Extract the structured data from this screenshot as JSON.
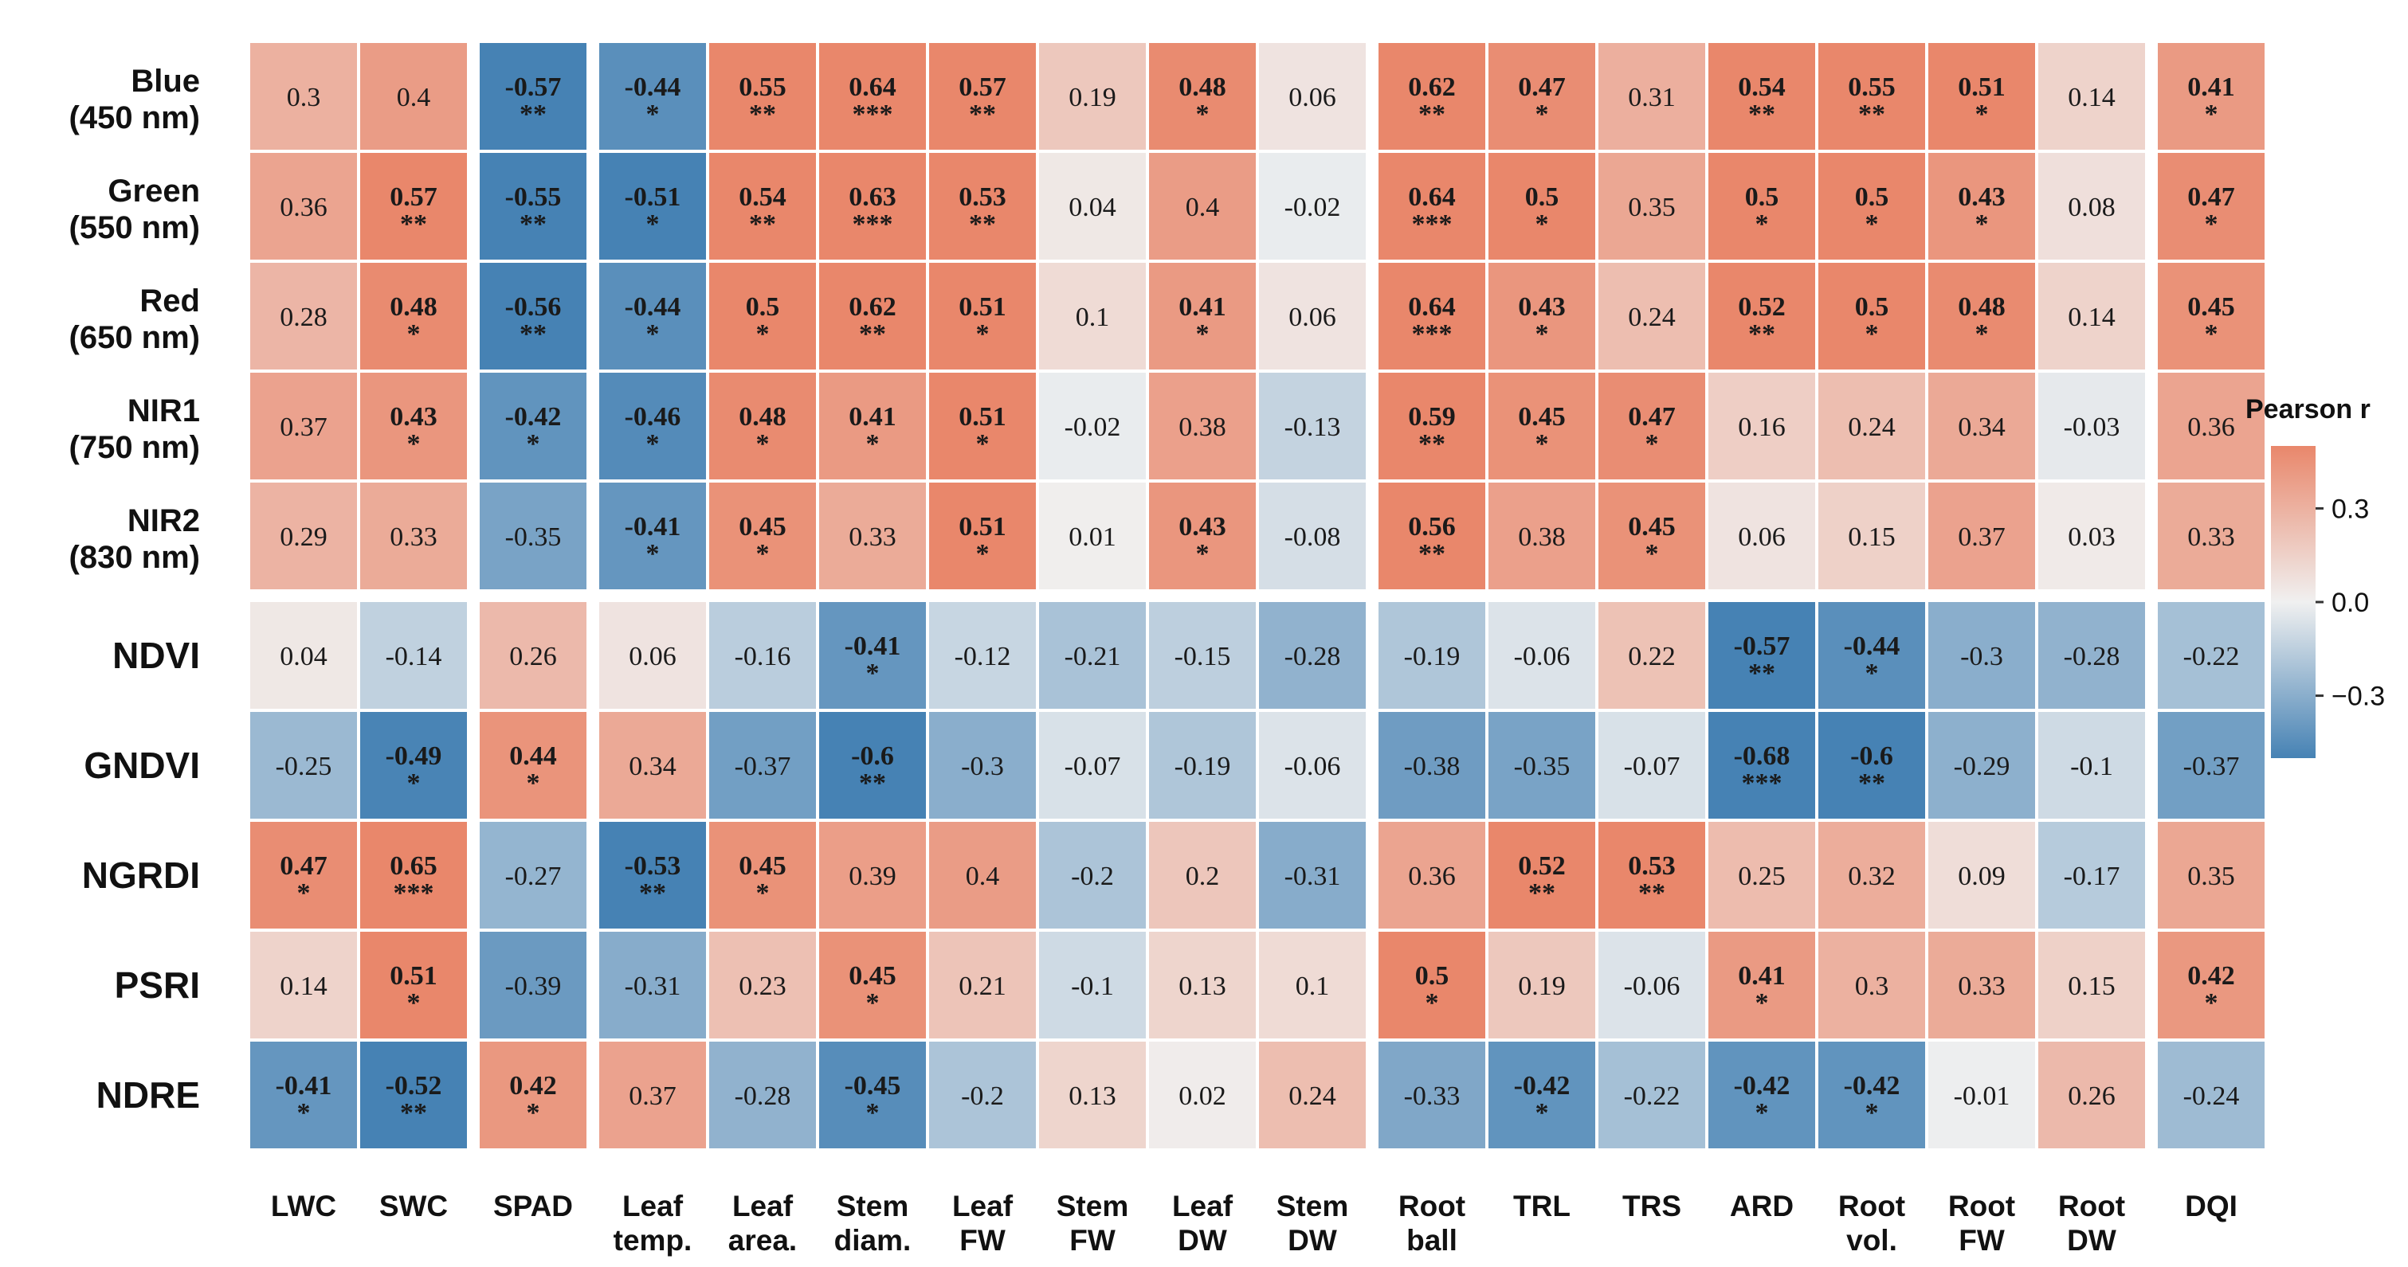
{
  "chart_data": {
    "type": "heatmap",
    "title": "",
    "xlabel": "",
    "ylabel": "",
    "legend": {
      "title": "Pearson r",
      "ticks": [
        0.3,
        0.0,
        -0.3
      ],
      "tick_labels": [
        "0.3",
        "0.0",
        "−0.3"
      ],
      "range": [
        -0.5,
        0.5
      ],
      "placement": "right",
      "colors": {
        "low": "#4682b4",
        "mid": "#f0f0f0",
        "high": "#e9876b"
      }
    },
    "rows": [
      [
        "Blue",
        "(450 nm)"
      ],
      [
        "Green",
        "(550 nm)"
      ],
      [
        "Red",
        "(650 nm)"
      ],
      [
        "NIR1",
        "(750 nm)"
      ],
      [
        "NIR2",
        "(830 nm)"
      ],
      [
        "NDVI"
      ],
      [
        "GNDVI"
      ],
      [
        "NGRDI"
      ],
      [
        "PSRI"
      ],
      [
        "NDRE"
      ]
    ],
    "row_groups": [
      5,
      5
    ],
    "columns": [
      [
        "LWC"
      ],
      [
        "SWC"
      ],
      [
        "SPAD"
      ],
      [
        "Leaf",
        "temp."
      ],
      [
        "Leaf",
        "area."
      ],
      [
        "Stem",
        "diam."
      ],
      [
        "Leaf",
        "FW"
      ],
      [
        "Stem",
        "FW"
      ],
      [
        "Leaf",
        "DW"
      ],
      [
        "Stem",
        "DW"
      ],
      [
        "Root",
        "ball"
      ],
      [
        "TRL"
      ],
      [
        "TRS"
      ],
      [
        "ARD"
      ],
      [
        "Root",
        "vol."
      ],
      [
        "Root",
        "FW"
      ],
      [
        "Root",
        "DW"
      ],
      [
        "DQI"
      ]
    ],
    "column_groups": [
      2,
      1,
      7,
      7,
      1
    ],
    "values": [
      [
        "0.3",
        "0.4",
        "-0.57",
        "-0.44",
        "0.55",
        "0.64",
        "0.57",
        "0.19",
        "0.48",
        "0.06",
        "0.62",
        "0.47",
        "0.31",
        "0.54",
        "0.55",
        "0.51",
        "0.14",
        "0.41"
      ],
      [
        "0.36",
        "0.57",
        "-0.55",
        "-0.51",
        "0.54",
        "0.63",
        "0.53",
        "0.04",
        "0.4",
        "-0.02",
        "0.64",
        "0.5",
        "0.35",
        "0.5",
        "0.5",
        "0.43",
        "0.08",
        "0.47"
      ],
      [
        "0.28",
        "0.48",
        "-0.56",
        "-0.44",
        "0.5",
        "0.62",
        "0.51",
        "0.1",
        "0.41",
        "0.06",
        "0.64",
        "0.43",
        "0.24",
        "0.52",
        "0.5",
        "0.48",
        "0.14",
        "0.45"
      ],
      [
        "0.37",
        "0.43",
        "-0.42",
        "-0.46",
        "0.48",
        "0.41",
        "0.51",
        "-0.02",
        "0.38",
        "-0.13",
        "0.59",
        "0.45",
        "0.47",
        "0.16",
        "0.24",
        "0.34",
        "-0.03",
        "0.36"
      ],
      [
        "0.29",
        "0.33",
        "-0.35",
        "-0.41",
        "0.45",
        "0.33",
        "0.51",
        "0.01",
        "0.43",
        "-0.08",
        "0.56",
        "0.38",
        "0.45",
        "0.06",
        "0.15",
        "0.37",
        "0.03",
        "0.33"
      ],
      [
        "0.04",
        "-0.14",
        "0.26",
        "0.06",
        "-0.16",
        "-0.41",
        "-0.12",
        "-0.21",
        "-0.15",
        "-0.28",
        "-0.19",
        "-0.06",
        "0.22",
        "-0.57",
        "-0.44",
        "-0.3",
        "-0.28",
        "-0.22"
      ],
      [
        "-0.25",
        "-0.49",
        "0.44",
        "0.34",
        "-0.37",
        "-0.6",
        "-0.3",
        "-0.07",
        "-0.19",
        "-0.06",
        "-0.38",
        "-0.35",
        "-0.07",
        "-0.68",
        "-0.6",
        "-0.29",
        "-0.1",
        "-0.37"
      ],
      [
        "0.47",
        "0.65",
        "-0.27",
        "-0.53",
        "0.45",
        "0.39",
        "0.4",
        "-0.2",
        "0.2",
        "-0.31",
        "0.36",
        "0.52",
        "0.53",
        "0.25",
        "0.32",
        "0.09",
        "-0.17",
        "0.35"
      ],
      [
        "0.14",
        "0.51",
        "-0.39",
        "-0.31",
        "0.23",
        "0.45",
        "0.21",
        "-0.1",
        "0.13",
        "0.1",
        "0.5",
        "0.19",
        "-0.06",
        "0.41",
        "0.3",
        "0.33",
        "0.15",
        "0.42"
      ],
      [
        "-0.41",
        "-0.52",
        "0.42",
        "0.37",
        "-0.28",
        "-0.45",
        "-0.2",
        "0.13",
        "0.02",
        "0.24",
        "-0.33",
        "-0.42",
        "-0.22",
        "-0.42",
        "-0.42",
        "-0.01",
        "0.26",
        "-0.24"
      ]
    ],
    "significance": [
      [
        "",
        "",
        "**",
        "*",
        "**",
        "***",
        "**",
        "",
        "*",
        "",
        "**",
        "*",
        "",
        "**",
        "**",
        "*",
        "",
        "*"
      ],
      [
        "",
        "**",
        "**",
        "*",
        "**",
        "***",
        "**",
        "",
        "",
        "",
        "***",
        "*",
        "",
        "*",
        "*",
        "*",
        "",
        "*"
      ],
      [
        "",
        "*",
        "**",
        "*",
        "*",
        "**",
        "*",
        "",
        "*",
        "",
        "***",
        "*",
        "",
        "**",
        "*",
        "*",
        "",
        "*"
      ],
      [
        "",
        "*",
        "*",
        "*",
        "*",
        "*",
        "*",
        "",
        "",
        "",
        "**",
        "*",
        "*",
        "",
        "",
        "",
        "",
        ""
      ],
      [
        "",
        "",
        "",
        "*",
        "*",
        "",
        "*",
        "",
        "*",
        "",
        "**",
        "",
        "*",
        "",
        "",
        "",
        "",
        ""
      ],
      [
        "",
        "",
        "",
        "",
        "",
        "*",
        "",
        "",
        "",
        "",
        "",
        "",
        "",
        "**",
        "*",
        "",
        "",
        ""
      ],
      [
        "",
        "*",
        "*",
        "",
        "",
        "**",
        "",
        "",
        "",
        "",
        "",
        "",
        "",
        "***",
        "**",
        "",
        "",
        ""
      ],
      [
        "*",
        "***",
        "",
        "**",
        "*",
        "",
        "",
        "",
        "",
        "",
        "",
        "**",
        "**",
        "",
        "",
        "",
        "",
        ""
      ],
      [
        "",
        "*",
        "",
        "",
        "",
        "*",
        "",
        "",
        "",
        "",
        "*",
        "",
        "",
        "*",
        "",
        "",
        "",
        "*"
      ],
      [
        "*",
        "**",
        "*",
        "",
        "",
        "*",
        "",
        "",
        "",
        "",
        "",
        "*",
        "",
        "*",
        "*",
        "",
        "",
        ""
      ]
    ]
  }
}
